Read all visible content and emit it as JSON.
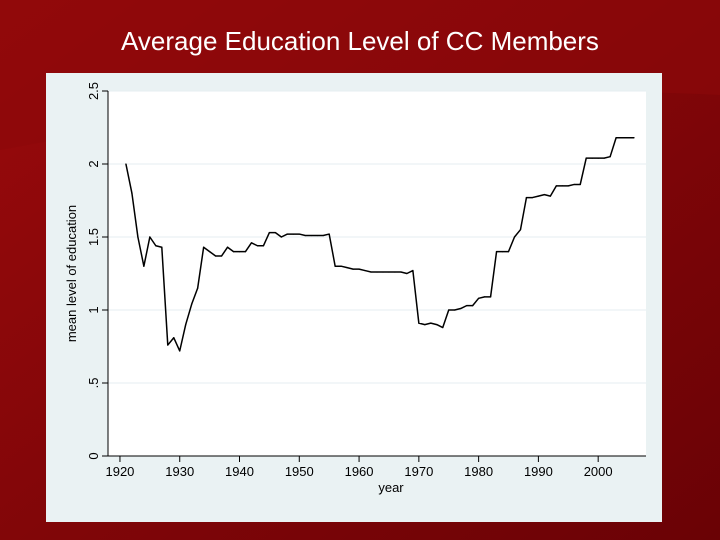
{
  "slide": {
    "title": "Average Education Level of CC Members"
  },
  "colors": {
    "background": "#7a0508",
    "panel": "#eaf2f3",
    "plot": "#ffffff",
    "line": "#000000",
    "grid": "#e6eef0"
  },
  "chart_data": {
    "type": "line",
    "title": "",
    "xlabel": "year",
    "ylabel": "mean level of education",
    "xlim": [
      1918,
      2008
    ],
    "ylim": [
      0,
      2.5
    ],
    "x_ticks": [
      1920,
      1930,
      1940,
      1950,
      1960,
      1970,
      1980,
      1990,
      2000
    ],
    "x_tick_labels": [
      "1920",
      "1930",
      "1940",
      "1950",
      "1960",
      "1970",
      "1980",
      "1990",
      "2000"
    ],
    "y_ticks": [
      0,
      0.5,
      1,
      1.5,
      2,
      2.5
    ],
    "y_tick_labels": [
      "0",
      ".5",
      "1",
      "1.5",
      "2",
      "2.5"
    ],
    "grid": true,
    "series": [
      {
        "x": [
          1921,
          1922,
          1923,
          1924,
          1925,
          1926,
          1927,
          1928,
          1929,
          1930,
          1931,
          1932,
          1933,
          1934,
          1935,
          1936,
          1937,
          1938,
          1939,
          1940,
          1941,
          1942,
          1943,
          1944,
          1945,
          1946,
          1947,
          1948,
          1949,
          1950,
          1951,
          1952,
          1953,
          1954,
          1955,
          1956,
          1957,
          1958,
          1959,
          1960,
          1961,
          1962,
          1963,
          1964,
          1965,
          1966,
          1967,
          1968,
          1969,
          1970,
          1971,
          1972,
          1973,
          1974,
          1975,
          1976,
          1977,
          1978,
          1979,
          1980,
          1981,
          1982,
          1983,
          1984,
          1985,
          1986,
          1987,
          1988,
          1989,
          1990,
          1991,
          1992,
          1993,
          1994,
          1995,
          1996,
          1997,
          1998,
          1999,
          2000,
          2001,
          2002,
          2003,
          2004,
          2005,
          2006
        ],
        "values": [
          2.0,
          1.8,
          1.5,
          1.3,
          1.5,
          1.44,
          1.43,
          0.76,
          0.81,
          0.72,
          0.9,
          1.04,
          1.15,
          1.43,
          1.4,
          1.37,
          1.37,
          1.43,
          1.4,
          1.4,
          1.4,
          1.46,
          1.44,
          1.44,
          1.53,
          1.53,
          1.5,
          1.52,
          1.52,
          1.52,
          1.51,
          1.51,
          1.51,
          1.51,
          1.52,
          1.3,
          1.3,
          1.29,
          1.28,
          1.28,
          1.27,
          1.26,
          1.26,
          1.26,
          1.26,
          1.26,
          1.26,
          1.25,
          1.27,
          0.91,
          0.9,
          0.91,
          0.9,
          0.88,
          1.0,
          1.0,
          1.01,
          1.03,
          1.03,
          1.08,
          1.09,
          1.09,
          1.4,
          1.4,
          1.4,
          1.5,
          1.55,
          1.77,
          1.77,
          1.78,
          1.79,
          1.78,
          1.85,
          1.85,
          1.85,
          1.86,
          1.86,
          2.04,
          2.04,
          2.04,
          2.04,
          2.05,
          2.18,
          2.18,
          2.18,
          2.18
        ]
      }
    ]
  }
}
